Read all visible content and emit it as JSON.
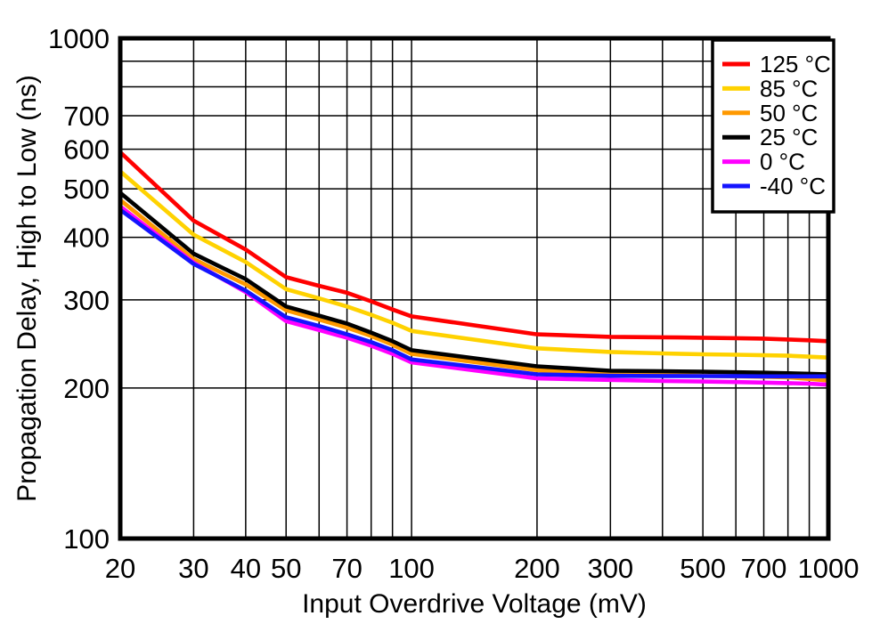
{
  "figure": {
    "background": "#ffffff",
    "frame_color": "#000000",
    "grid_color": "#000000"
  },
  "chart_data": {
    "type": "line",
    "title": "",
    "xlabel": "Input Overdrive Voltage (mV)",
    "ylabel": "Propagation Delay, High to Low (ns)",
    "x_scale": "log",
    "y_scale": "log",
    "xlim": [
      20,
      1000
    ],
    "ylim": [
      100,
      1000
    ],
    "grid": true,
    "legend_position": "top-right",
    "x_tick_labels": [
      20,
      30,
      40,
      50,
      70,
      100,
      200,
      300,
      500,
      700,
      1000
    ],
    "x_gridlines": [
      30,
      40,
      50,
      60,
      70,
      80,
      90,
      100,
      200,
      300,
      400,
      500,
      600,
      700,
      800,
      900
    ],
    "y_tick_labels": [
      100,
      200,
      300,
      400,
      500,
      600,
      700,
      1000
    ],
    "y_gridlines": [
      200,
      300,
      400,
      500,
      600,
      700,
      800,
      900
    ],
    "x": [
      20,
      30,
      40,
      50,
      60,
      70,
      80,
      90,
      100,
      200,
      300,
      400,
      500,
      600,
      700,
      800,
      900,
      1000
    ],
    "series": [
      {
        "name": "125 °C",
        "color": "#ff0000",
        "values": [
          592,
          432,
          378,
          333,
          320,
          310,
          298,
          287,
          278,
          256,
          253,
          252.5,
          252,
          251.5,
          251,
          250,
          249,
          248
        ]
      },
      {
        "name": "85 °C",
        "color": "#ffd200",
        "values": [
          542,
          405,
          357,
          315,
          302,
          291,
          280,
          270,
          260,
          240,
          236,
          234.5,
          233.5,
          233,
          232.5,
          232,
          231,
          230
        ]
      },
      {
        "name": "50 °C",
        "color": "#ff9900",
        "values": [
          475,
          362,
          322,
          286,
          274,
          264,
          254,
          244,
          234,
          217,
          213.5,
          212.5,
          211.5,
          211,
          210.5,
          210,
          208.5,
          207
        ]
      },
      {
        "name": "25 °C",
        "color": "#000000",
        "values": [
          491,
          371,
          330,
          291,
          279,
          269,
          258,
          248,
          238,
          221,
          216.5,
          216,
          215.5,
          215,
          214.5,
          214,
          213.5,
          213
        ]
      },
      {
        "name": "0 °C",
        "color": "#ff00ff",
        "values": [
          461,
          356,
          311,
          272,
          261,
          252,
          243,
          234,
          225,
          209,
          207.5,
          206.5,
          206,
          205.5,
          205,
          204.5,
          204,
          203
        ]
      },
      {
        "name": "-40 °C",
        "color": "#1414ff",
        "values": [
          454,
          354,
          313,
          277,
          266,
          256,
          247,
          238,
          228,
          213,
          211.5,
          211.3,
          211.2,
          211.1,
          211,
          211,
          211,
          211
        ]
      }
    ]
  }
}
